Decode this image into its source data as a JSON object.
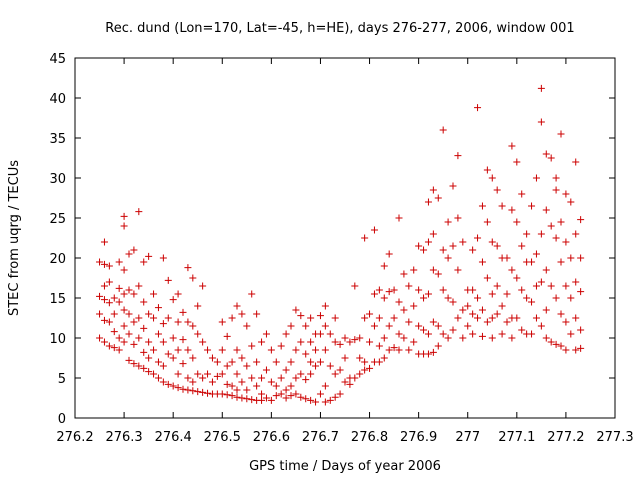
{
  "chart_data": {
    "type": "scatter",
    "title": "Rec. dund (Lon=170, Lat=-45, h=HE), days 276-277, 2006, window 001",
    "xlabel": "GPS time / Days of year 2006",
    "ylabel": "STEC from uqrg / TECUs",
    "xlim": [
      276.2,
      277.3
    ],
    "ylim": [
      0,
      45
    ],
    "xticks": [
      276.2,
      276.3,
      276.4,
      276.5,
      276.6,
      276.7,
      276.8,
      276.9,
      277,
      277.1,
      277.2,
      277.3
    ],
    "xtick_labels": [
      "276.2",
      "276.3",
      "276.4",
      "276.5",
      "276.6",
      "276.7",
      "276.8",
      "276.9",
      "277",
      "277.1",
      "277.2",
      "277.3"
    ],
    "yticks": [
      0,
      5,
      10,
      15,
      20,
      25,
      30,
      35,
      40,
      45
    ],
    "ytick_labels": [
      "0",
      "5",
      "10",
      "15",
      "20",
      "25",
      "30",
      "35",
      "40",
      "45"
    ],
    "grid": false,
    "marker": "+",
    "color": "#cc0000",
    "points": [
      [
        276.25,
        19.5
      ],
      [
        276.25,
        15.2
      ],
      [
        276.25,
        13.0
      ],
      [
        276.25,
        10.0
      ],
      [
        276.26,
        22.0
      ],
      [
        276.26,
        19.2
      ],
      [
        276.26,
        16.5
      ],
      [
        276.26,
        14.8
      ],
      [
        276.26,
        12.2
      ],
      [
        276.26,
        9.5
      ],
      [
        276.27,
        19.0
      ],
      [
        276.27,
        17.0
      ],
      [
        276.27,
        14.4
      ],
      [
        276.27,
        12.0
      ],
      [
        276.27,
        9.0
      ],
      [
        276.28,
        15.0
      ],
      [
        276.28,
        13.0
      ],
      [
        276.28,
        10.8
      ],
      [
        276.28,
        8.8
      ],
      [
        276.29,
        19.5
      ],
      [
        276.29,
        16.2
      ],
      [
        276.29,
        14.5
      ],
      [
        276.29,
        10.0
      ],
      [
        276.29,
        8.5
      ],
      [
        276.3,
        25.2
      ],
      [
        276.3,
        24.0
      ],
      [
        276.3,
        18.5
      ],
      [
        276.3,
        15.5
      ],
      [
        276.3,
        13.5
      ],
      [
        276.3,
        11.5
      ],
      [
        276.3,
        9.5
      ],
      [
        276.31,
        20.5
      ],
      [
        276.31,
        16.0
      ],
      [
        276.31,
        13.0
      ],
      [
        276.31,
        10.5
      ],
      [
        276.31,
        7.2
      ],
      [
        276.32,
        21.0
      ],
      [
        276.32,
        15.5
      ],
      [
        276.32,
        12.0
      ],
      [
        276.32,
        9.2
      ],
      [
        276.32,
        6.8
      ],
      [
        276.33,
        25.8
      ],
      [
        276.33,
        16.5
      ],
      [
        276.33,
        12.5
      ],
      [
        276.33,
        10.0
      ],
      [
        276.33,
        6.5
      ],
      [
        276.34,
        19.5
      ],
      [
        276.34,
        14.5
      ],
      [
        276.34,
        11.2
      ],
      [
        276.34,
        8.2
      ],
      [
        276.34,
        6.2
      ],
      [
        276.35,
        20.2
      ],
      [
        276.35,
        13.0
      ],
      [
        276.35,
        9.5
      ],
      [
        276.35,
        7.5
      ],
      [
        276.35,
        5.8
      ],
      [
        276.36,
        15.5
      ],
      [
        276.36,
        12.5
      ],
      [
        276.36,
        8.5
      ],
      [
        276.36,
        5.5
      ],
      [
        276.37,
        13.8
      ],
      [
        276.37,
        10.5
      ],
      [
        276.37,
        7.0
      ],
      [
        276.37,
        5.0
      ],
      [
        276.38,
        20.0
      ],
      [
        276.38,
        11.8
      ],
      [
        276.38,
        9.5
      ],
      [
        276.38,
        6.5
      ],
      [
        276.38,
        4.5
      ],
      [
        276.39,
        17.2
      ],
      [
        276.39,
        12.5
      ],
      [
        276.39,
        8.0
      ],
      [
        276.39,
        4.2
      ],
      [
        276.4,
        14.8
      ],
      [
        276.4,
        10.0
      ],
      [
        276.4,
        7.5
      ],
      [
        276.4,
        4.0
      ],
      [
        276.41,
        15.5
      ],
      [
        276.41,
        12.0
      ],
      [
        276.41,
        8.5
      ],
      [
        276.41,
        5.5
      ],
      [
        276.41,
        3.8
      ],
      [
        276.42,
        13.2
      ],
      [
        276.42,
        9.8
      ],
      [
        276.42,
        6.8
      ],
      [
        276.42,
        3.6
      ],
      [
        276.43,
        18.8
      ],
      [
        276.43,
        12.0
      ],
      [
        276.43,
        8.5
      ],
      [
        276.43,
        5.0
      ],
      [
        276.43,
        3.5
      ],
      [
        276.44,
        17.5
      ],
      [
        276.44,
        11.5
      ],
      [
        276.44,
        7.5
      ],
      [
        276.44,
        4.5
      ],
      [
        276.44,
        3.4
      ],
      [
        276.45,
        14.0
      ],
      [
        276.45,
        10.5
      ],
      [
        276.45,
        5.5
      ],
      [
        276.45,
        3.3
      ],
      [
        276.46,
        16.5
      ],
      [
        276.46,
        9.5
      ],
      [
        276.46,
        5.0
      ],
      [
        276.46,
        3.2
      ],
      [
        276.47,
        8.5
      ],
      [
        276.47,
        5.5
      ],
      [
        276.47,
        3.1
      ],
      [
        276.48,
        7.5
      ],
      [
        276.48,
        4.5
      ],
      [
        276.48,
        3.0
      ],
      [
        276.49,
        7.0
      ],
      [
        276.49,
        5.2
      ],
      [
        276.49,
        3.0
      ],
      [
        276.5,
        12.0
      ],
      [
        276.5,
        8.5
      ],
      [
        276.5,
        5.5
      ],
      [
        276.5,
        3.0
      ],
      [
        276.51,
        10.2
      ],
      [
        276.51,
        6.5
      ],
      [
        276.51,
        4.2
      ],
      [
        276.51,
        2.9
      ],
      [
        276.52,
        12.5
      ],
      [
        276.52,
        7.0
      ],
      [
        276.52,
        4.0
      ],
      [
        276.52,
        2.8
      ],
      [
        276.53,
        14.0
      ],
      [
        276.53,
        8.5
      ],
      [
        276.53,
        5.5
      ],
      [
        276.53,
        3.5
      ],
      [
        276.53,
        2.6
      ],
      [
        276.54,
        13.0
      ],
      [
        276.54,
        7.5
      ],
      [
        276.54,
        4.5
      ],
      [
        276.54,
        2.5
      ],
      [
        276.55,
        11.5
      ],
      [
        276.55,
        6.5
      ],
      [
        276.55,
        3.5
      ],
      [
        276.55,
        2.4
      ],
      [
        276.56,
        15.5
      ],
      [
        276.56,
        9.0
      ],
      [
        276.56,
        5.0
      ],
      [
        276.56,
        2.3
      ],
      [
        276.57,
        13.0
      ],
      [
        276.57,
        7.0
      ],
      [
        276.57,
        4.0
      ],
      [
        276.57,
        2.2
      ],
      [
        276.58,
        9.5
      ],
      [
        276.58,
        5.0
      ],
      [
        276.58,
        3.0
      ],
      [
        276.58,
        2.2
      ],
      [
        276.59,
        10.5
      ],
      [
        276.59,
        6.0
      ],
      [
        276.59,
        2.5
      ],
      [
        276.6,
        8.5
      ],
      [
        276.6,
        4.5
      ],
      [
        276.6,
        2.2
      ],
      [
        276.61,
        7.0
      ],
      [
        276.61,
        4.0
      ],
      [
        276.61,
        2.8
      ],
      [
        276.62,
        9.0
      ],
      [
        276.62,
        5.0
      ],
      [
        276.62,
        3.0
      ],
      [
        276.63,
        10.5
      ],
      [
        276.63,
        6.0
      ],
      [
        276.63,
        3.5
      ],
      [
        276.63,
        2.5
      ],
      [
        276.64,
        11.5
      ],
      [
        276.64,
        7.0
      ],
      [
        276.64,
        4.0
      ],
      [
        276.64,
        2.8
      ],
      [
        276.65,
        13.5
      ],
      [
        276.65,
        8.5
      ],
      [
        276.65,
        5.0
      ],
      [
        276.65,
        3.0
      ],
      [
        276.66,
        12.8
      ],
      [
        276.66,
        9.5
      ],
      [
        276.66,
        5.5
      ],
      [
        276.66,
        2.6
      ],
      [
        276.67,
        11.5
      ],
      [
        276.67,
        8.0
      ],
      [
        276.67,
        4.8
      ],
      [
        276.67,
        2.4
      ],
      [
        276.68,
        12.5
      ],
      [
        276.68,
        9.5
      ],
      [
        276.68,
        7.0
      ],
      [
        276.68,
        5.5
      ],
      [
        276.68,
        2.2
      ],
      [
        276.69,
        10.5
      ],
      [
        276.69,
        8.5
      ],
      [
        276.69,
        6.5
      ],
      [
        276.69,
        2.0
      ],
      [
        276.7,
        12.8
      ],
      [
        276.7,
        10.5
      ],
      [
        276.7,
        7.0
      ],
      [
        276.7,
        3.0
      ],
      [
        276.71,
        14.0
      ],
      [
        276.71,
        11.5
      ],
      [
        276.71,
        8.5
      ],
      [
        276.71,
        4.0
      ],
      [
        276.71,
        2.0
      ],
      [
        276.72,
        10.5
      ],
      [
        276.72,
        6.5
      ],
      [
        276.72,
        2.2
      ],
      [
        276.73,
        12.5
      ],
      [
        276.73,
        9.5
      ],
      [
        276.73,
        5.5
      ],
      [
        276.73,
        2.6
      ],
      [
        276.74,
        9.2
      ],
      [
        276.74,
        6.0
      ],
      [
        276.74,
        3.0
      ],
      [
        276.75,
        10.0
      ],
      [
        276.75,
        7.5
      ],
      [
        276.75,
        4.5
      ],
      [
        276.76,
        9.5
      ],
      [
        276.76,
        5.0
      ],
      [
        276.76,
        4.2
      ],
      [
        276.77,
        16.5
      ],
      [
        276.77,
        9.8
      ],
      [
        276.77,
        5.0
      ],
      [
        276.78,
        10.0
      ],
      [
        276.78,
        7.5
      ],
      [
        276.78,
        5.5
      ],
      [
        276.79,
        22.5
      ],
      [
        276.79,
        12.5
      ],
      [
        276.79,
        7.0
      ],
      [
        276.79,
        6.0
      ],
      [
        276.8,
        13.0
      ],
      [
        276.8,
        9.5
      ],
      [
        276.8,
        6.2
      ],
      [
        276.81,
        23.5
      ],
      [
        276.81,
        15.5
      ],
      [
        276.81,
        11.5
      ],
      [
        276.81,
        7.0
      ],
      [
        276.82,
        16.0
      ],
      [
        276.82,
        12.5
      ],
      [
        276.82,
        9.0
      ],
      [
        276.82,
        7.0
      ],
      [
        276.83,
        19.0
      ],
      [
        276.83,
        15.0
      ],
      [
        276.83,
        10.0
      ],
      [
        276.83,
        7.5
      ],
      [
        276.84,
        20.5
      ],
      [
        276.84,
        15.8
      ],
      [
        276.84,
        11.5
      ],
      [
        276.84,
        8.5
      ],
      [
        276.85,
        16.0
      ],
      [
        276.85,
        12.5
      ],
      [
        276.85,
        8.8
      ],
      [
        276.86,
        25.0
      ],
      [
        276.86,
        14.5
      ],
      [
        276.86,
        10.5
      ],
      [
        276.86,
        8.5
      ],
      [
        276.87,
        18.0
      ],
      [
        276.87,
        13.5
      ],
      [
        276.87,
        10.0
      ],
      [
        276.88,
        16.5
      ],
      [
        276.88,
        12.0
      ],
      [
        276.88,
        8.5
      ],
      [
        276.89,
        18.5
      ],
      [
        276.89,
        14.0
      ],
      [
        276.89,
        9.5
      ],
      [
        276.9,
        21.5
      ],
      [
        276.9,
        16.0
      ],
      [
        276.9,
        11.5
      ],
      [
        276.9,
        8.0
      ],
      [
        276.91,
        21.0
      ],
      [
        276.91,
        15.0
      ],
      [
        276.91,
        11.0
      ],
      [
        276.91,
        8.0
      ],
      [
        276.92,
        27.0
      ],
      [
        276.92,
        22.0
      ],
      [
        276.92,
        15.5
      ],
      [
        276.92,
        10.5
      ],
      [
        276.92,
        8.0
      ],
      [
        276.93,
        28.5
      ],
      [
        276.93,
        23.0
      ],
      [
        276.93,
        18.5
      ],
      [
        276.93,
        12.0
      ],
      [
        276.93,
        8.2
      ],
      [
        276.94,
        27.5
      ],
      [
        276.94,
        18.0
      ],
      [
        276.94,
        11.5
      ],
      [
        276.94,
        9.0
      ],
      [
        276.95,
        36.0
      ],
      [
        276.95,
        21.0
      ],
      [
        276.95,
        16.0
      ],
      [
        276.95,
        10.5
      ],
      [
        276.96,
        24.5
      ],
      [
        276.96,
        20.0
      ],
      [
        276.96,
        15.0
      ],
      [
        276.96,
        10.0
      ],
      [
        276.97,
        29.0
      ],
      [
        276.97,
        21.5
      ],
      [
        276.97,
        14.5
      ],
      [
        276.97,
        11.0
      ],
      [
        276.98,
        32.8
      ],
      [
        276.98,
        25.0
      ],
      [
        276.98,
        18.5
      ],
      [
        276.98,
        12.5
      ],
      [
        276.99,
        22.0
      ],
      [
        276.99,
        13.5
      ],
      [
        276.99,
        10.0
      ],
      [
        277.0,
        16.0
      ],
      [
        277.0,
        14.0
      ],
      [
        277.0,
        11.5
      ],
      [
        277.01,
        21.0
      ],
      [
        277.01,
        16.0
      ],
      [
        277.01,
        13.0
      ],
      [
        277.01,
        10.5
      ],
      [
        277.02,
        38.8
      ],
      [
        277.02,
        22.5
      ],
      [
        277.02,
        15.0
      ],
      [
        277.02,
        12.5
      ],
      [
        277.03,
        26.5
      ],
      [
        277.03,
        19.5
      ],
      [
        277.03,
        13.5
      ],
      [
        277.03,
        10.2
      ],
      [
        277.04,
        31.0
      ],
      [
        277.04,
        24.5
      ],
      [
        277.04,
        17.5
      ],
      [
        277.04,
        12.0
      ],
      [
        277.05,
        30.0
      ],
      [
        277.05,
        22.0
      ],
      [
        277.05,
        15.5
      ],
      [
        277.05,
        12.5
      ],
      [
        277.05,
        10.0
      ],
      [
        277.06,
        28.5
      ],
      [
        277.06,
        21.5
      ],
      [
        277.06,
        16.5
      ],
      [
        277.06,
        13.0
      ],
      [
        277.07,
        26.5
      ],
      [
        277.07,
        20.0
      ],
      [
        277.07,
        14.0
      ],
      [
        277.07,
        10.5
      ],
      [
        277.08,
        20.0
      ],
      [
        277.08,
        15.5
      ],
      [
        277.08,
        12.0
      ],
      [
        277.09,
        34.0
      ],
      [
        277.09,
        26.0
      ],
      [
        277.09,
        18.5
      ],
      [
        277.09,
        12.5
      ],
      [
        277.09,
        10.0
      ],
      [
        277.1,
        32.0
      ],
      [
        277.1,
        24.5
      ],
      [
        277.1,
        17.5
      ],
      [
        277.1,
        12.5
      ],
      [
        277.11,
        28.0
      ],
      [
        277.11,
        21.5
      ],
      [
        277.11,
        16.0
      ],
      [
        277.11,
        11.0
      ],
      [
        277.12,
        23.0
      ],
      [
        277.12,
        19.5
      ],
      [
        277.12,
        15.0
      ],
      [
        277.12,
        10.5
      ],
      [
        277.13,
        26.5
      ],
      [
        277.13,
        19.5
      ],
      [
        277.13,
        14.5
      ],
      [
        277.13,
        10.5
      ],
      [
        277.14,
        30.0
      ],
      [
        277.14,
        20.5
      ],
      [
        277.14,
        16.5
      ],
      [
        277.14,
        12.5
      ],
      [
        277.15,
        41.2
      ],
      [
        277.15,
        37.0
      ],
      [
        277.15,
        23.0
      ],
      [
        277.15,
        17.0
      ],
      [
        277.15,
        11.5
      ],
      [
        277.16,
        33.0
      ],
      [
        277.16,
        26.0
      ],
      [
        277.16,
        18.5
      ],
      [
        277.16,
        13.5
      ],
      [
        277.16,
        10.0
      ],
      [
        277.17,
        32.5
      ],
      [
        277.17,
        24.0
      ],
      [
        277.17,
        16.5
      ],
      [
        277.17,
        9.5
      ],
      [
        277.18,
        30.0
      ],
      [
        277.18,
        28.5
      ],
      [
        277.18,
        22.5
      ],
      [
        277.18,
        15.0
      ],
      [
        277.18,
        9.2
      ],
      [
        277.19,
        35.5
      ],
      [
        277.19,
        24.5
      ],
      [
        277.19,
        19.5
      ],
      [
        277.19,
        13.0
      ],
      [
        277.19,
        9.0
      ],
      [
        277.2,
        28.0
      ],
      [
        277.2,
        22.0
      ],
      [
        277.2,
        16.5
      ],
      [
        277.2,
        12.0
      ],
      [
        277.2,
        8.5
      ],
      [
        277.21,
        27.0
      ],
      [
        277.21,
        20.0
      ],
      [
        277.21,
        15.0
      ],
      [
        277.21,
        10.5
      ],
      [
        277.22,
        32.0
      ],
      [
        277.22,
        23.0
      ],
      [
        277.22,
        17.0
      ],
      [
        277.22,
        12.5
      ],
      [
        277.22,
        8.5
      ],
      [
        277.23,
        24.8
      ],
      [
        277.23,
        20.0
      ],
      [
        277.23,
        15.8
      ],
      [
        277.23,
        11.0
      ],
      [
        277.23,
        8.7
      ]
    ]
  }
}
